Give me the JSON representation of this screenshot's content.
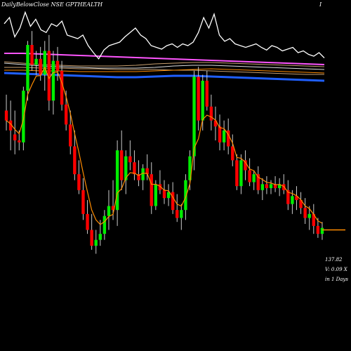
{
  "header": {
    "title": "DailyBelowClose NSE GPTHEALTH",
    "page_marker": "I"
  },
  "annotations": {
    "price": "137.82",
    "volume": "V: 0.09 X",
    "period": "in 1 Days"
  },
  "colors": {
    "background": "#000000",
    "up": "#00ee00",
    "down": "#ff0000",
    "wick": "#cccccc",
    "ema_short": "#ff8c00",
    "ma_magenta": "#ff55ff",
    "ma_blue": "#1f5fff",
    "ma_orange": "#ff8c00",
    "ma_tan": "#c8a070",
    "ma_white": "#dddddd",
    "oscillator": "#ffffff"
  },
  "chart_data": {
    "type": "candlestick",
    "price_scale_note": "no axis printed; values approximate in relative units",
    "candles": [
      {
        "o": 160,
        "h": 168,
        "l": 150,
        "c": 155
      },
      {
        "o": 155,
        "h": 165,
        "l": 140,
        "c": 150
      },
      {
        "o": 148,
        "h": 160,
        "l": 138,
        "c": 145
      },
      {
        "o": 145,
        "h": 150,
        "l": 140,
        "c": 144
      },
      {
        "o": 144,
        "h": 172,
        "l": 140,
        "c": 170
      },
      {
        "o": 170,
        "h": 195,
        "l": 165,
        "c": 193
      },
      {
        "o": 193,
        "h": 200,
        "l": 180,
        "c": 183
      },
      {
        "o": 183,
        "h": 190,
        "l": 178,
        "c": 186
      },
      {
        "o": 186,
        "h": 192,
        "l": 175,
        "c": 178
      },
      {
        "o": 178,
        "h": 195,
        "l": 170,
        "c": 190
      },
      {
        "o": 190,
        "h": 198,
        "l": 160,
        "c": 165
      },
      {
        "o": 165,
        "h": 190,
        "l": 158,
        "c": 185
      },
      {
        "o": 185,
        "h": 192,
        "l": 175,
        "c": 180
      },
      {
        "o": 180,
        "h": 185,
        "l": 160,
        "c": 163
      },
      {
        "o": 163,
        "h": 170,
        "l": 150,
        "c": 153
      },
      {
        "o": 153,
        "h": 160,
        "l": 138,
        "c": 142
      },
      {
        "o": 142,
        "h": 150,
        "l": 125,
        "c": 128
      },
      {
        "o": 128,
        "h": 135,
        "l": 118,
        "c": 120
      },
      {
        "o": 120,
        "h": 126,
        "l": 105,
        "c": 108
      },
      {
        "o": 108,
        "h": 115,
        "l": 98,
        "c": 100
      },
      {
        "o": 100,
        "h": 108,
        "l": 90,
        "c": 92
      },
      {
        "o": 92,
        "h": 100,
        "l": 88,
        "c": 95
      },
      {
        "o": 95,
        "h": 105,
        "l": 92,
        "c": 98
      },
      {
        "o": 98,
        "h": 110,
        "l": 95,
        "c": 107
      },
      {
        "o": 107,
        "h": 120,
        "l": 100,
        "c": 112
      },
      {
        "o": 112,
        "h": 125,
        "l": 105,
        "c": 110
      },
      {
        "o": 110,
        "h": 145,
        "l": 102,
        "c": 140
      },
      {
        "o": 140,
        "h": 150,
        "l": 120,
        "c": 125
      },
      {
        "o": 125,
        "h": 140,
        "l": 118,
        "c": 137
      },
      {
        "o": 137,
        "h": 145,
        "l": 130,
        "c": 134
      },
      {
        "o": 134,
        "h": 140,
        "l": 125,
        "c": 128
      },
      {
        "o": 128,
        "h": 135,
        "l": 122,
        "c": 125
      },
      {
        "o": 125,
        "h": 133,
        "l": 120,
        "c": 131
      },
      {
        "o": 131,
        "h": 138,
        "l": 125,
        "c": 128
      },
      {
        "o": 128,
        "h": 134,
        "l": 108,
        "c": 112
      },
      {
        "o": 112,
        "h": 125,
        "l": 110,
        "c": 123
      },
      {
        "o": 123,
        "h": 130,
        "l": 118,
        "c": 120
      },
      {
        "o": 120,
        "h": 125,
        "l": 113,
        "c": 116
      },
      {
        "o": 116,
        "h": 123,
        "l": 112,
        "c": 119
      },
      {
        "o": 119,
        "h": 124,
        "l": 108,
        "c": 110
      },
      {
        "o": 110,
        "h": 118,
        "l": 104,
        "c": 106
      },
      {
        "o": 106,
        "h": 113,
        "l": 100,
        "c": 110
      },
      {
        "o": 110,
        "h": 128,
        "l": 105,
        "c": 125
      },
      {
        "o": 125,
        "h": 140,
        "l": 120,
        "c": 137
      },
      {
        "o": 137,
        "h": 180,
        "l": 130,
        "c": 177
      },
      {
        "o": 177,
        "h": 182,
        "l": 150,
        "c": 155
      },
      {
        "o": 155,
        "h": 178,
        "l": 150,
        "c": 175
      },
      {
        "o": 175,
        "h": 180,
        "l": 160,
        "c": 162
      },
      {
        "o": 162,
        "h": 168,
        "l": 150,
        "c": 155
      },
      {
        "o": 155,
        "h": 162,
        "l": 145,
        "c": 152
      },
      {
        "o": 152,
        "h": 158,
        "l": 140,
        "c": 144
      },
      {
        "o": 144,
        "h": 155,
        "l": 140,
        "c": 150
      },
      {
        "o": 150,
        "h": 156,
        "l": 138,
        "c": 142
      },
      {
        "o": 142,
        "h": 148,
        "l": 132,
        "c": 135
      },
      {
        "o": 135,
        "h": 138,
        "l": 120,
        "c": 122
      },
      {
        "o": 122,
        "h": 138,
        "l": 118,
        "c": 135
      },
      {
        "o": 135,
        "h": 140,
        "l": 125,
        "c": 130
      },
      {
        "o": 130,
        "h": 136,
        "l": 122,
        "c": 124
      },
      {
        "o": 124,
        "h": 130,
        "l": 120,
        "c": 128
      },
      {
        "o": 128,
        "h": 132,
        "l": 118,
        "c": 120
      },
      {
        "o": 120,
        "h": 126,
        "l": 115,
        "c": 123
      },
      {
        "o": 123,
        "h": 127,
        "l": 118,
        "c": 121
      },
      {
        "o": 121,
        "h": 125,
        "l": 118,
        "c": 123
      },
      {
        "o": 123,
        "h": 127,
        "l": 119,
        "c": 121
      },
      {
        "o": 121,
        "h": 126,
        "l": 117,
        "c": 123
      },
      {
        "o": 123,
        "h": 128,
        "l": 118,
        "c": 120
      },
      {
        "o": 120,
        "h": 125,
        "l": 110,
        "c": 113
      },
      {
        "o": 113,
        "h": 120,
        "l": 108,
        "c": 117
      },
      {
        "o": 117,
        "h": 122,
        "l": 110,
        "c": 115
      },
      {
        "o": 115,
        "h": 119,
        "l": 108,
        "c": 111
      },
      {
        "o": 111,
        "h": 116,
        "l": 103,
        "c": 106
      },
      {
        "o": 106,
        "h": 112,
        "l": 100,
        "c": 108
      },
      {
        "o": 108,
        "h": 113,
        "l": 98,
        "c": 102
      },
      {
        "o": 102,
        "h": 106,
        "l": 96,
        "c": 98
      },
      {
        "o": 98,
        "h": 104,
        "l": 95,
        "c": 101
      }
    ],
    "last_price_level": 100,
    "series": [
      {
        "values": [
          172,
          172,
          171.5,
          171,
          170.5,
          170,
          169.5,
          169,
          168.5,
          168,
          167.5,
          167,
          166.5,
          166,
          165.5,
          165,
          164.5,
          164
        ]
      },
      {
        "values": [
          162,
          162,
          161.5,
          161.5,
          161,
          161,
          160.5,
          160.5,
          160.5,
          160,
          160,
          159.5,
          159,
          158.5,
          158,
          157.5,
          157,
          157
        ]
      },
      {
        "values": [
          160,
          160,
          159.5,
          159.5,
          159,
          159,
          159,
          159,
          159.5,
          160,
          160.5,
          161,
          160.5,
          160,
          159.5,
          159,
          158.5,
          158
        ]
      },
      {
        "values": [
          165,
          164,
          163,
          162.5,
          162,
          161.5,
          161.5,
          161.5,
          162,
          163,
          163.5,
          163.5,
          163,
          162.5,
          162,
          161.5,
          161,
          160.5
        ]
      },
      {
        "values": [
          166,
          165,
          164,
          163.5,
          163,
          163,
          163,
          163.5,
          164.5,
          165,
          165.5,
          165.5,
          165,
          164.5,
          164,
          163.5,
          163,
          162.5
        ]
      },
      {
        "values": [
          158,
          157.5,
          157,
          156.5,
          156,
          155.5,
          155,
          155,
          155.5,
          156,
          156,
          155.5,
          155,
          154.5,
          154,
          153.5,
          153,
          152.5
        ]
      }
    ],
    "oscillator": [
      85,
      92,
      70,
      80,
      98,
      82,
      90,
      78,
      75,
      85,
      82,
      88,
      72,
      70,
      68,
      72,
      60,
      52,
      45,
      55,
      60,
      62,
      64,
      70,
      75,
      80,
      72,
      68,
      60,
      58,
      56,
      60,
      62,
      58,
      62,
      60,
      64,
      75,
      92,
      80,
      96,
      72,
      65,
      68,
      62,
      60,
      58,
      60,
      62,
      58,
      55,
      60,
      58,
      54,
      56,
      58,
      52,
      54,
      50,
      48,
      52,
      46
    ]
  }
}
